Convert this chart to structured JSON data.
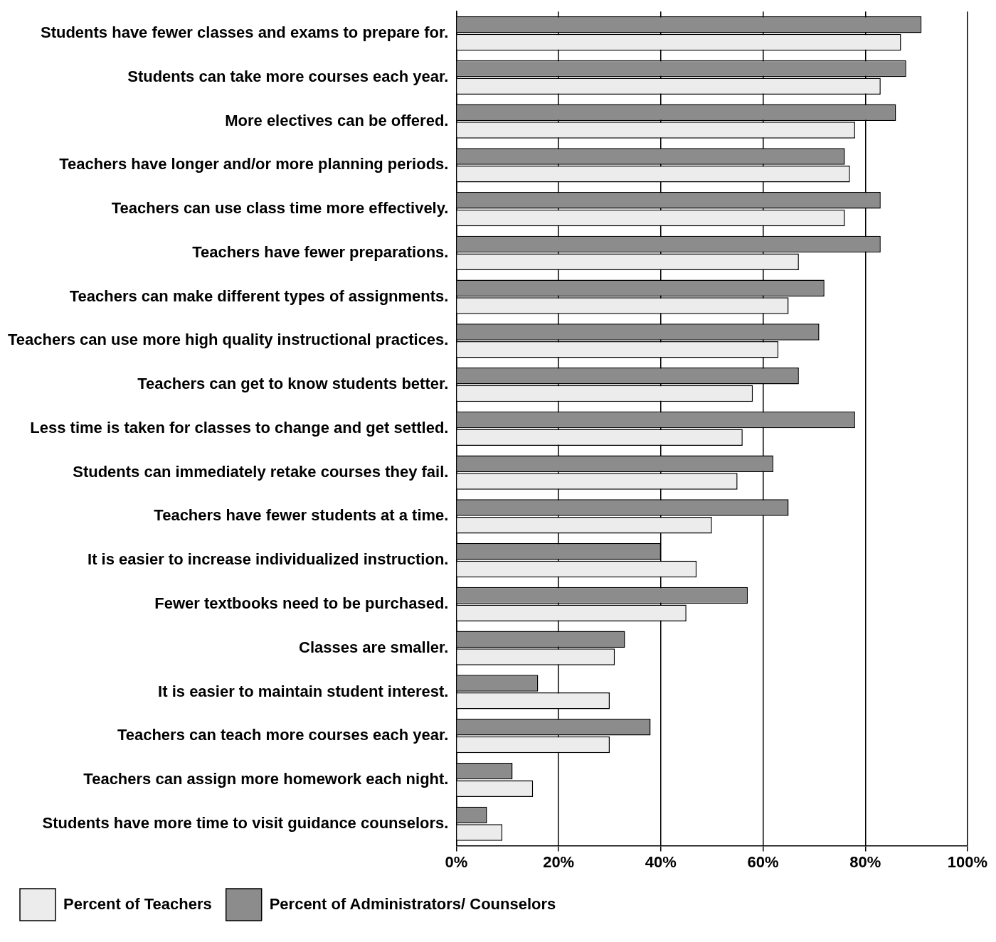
{
  "chart_data": {
    "type": "bar",
    "orientation": "horizontal",
    "categories": [
      "Students have fewer classes and exams to prepare for.",
      "Students can take more courses each year.",
      "More electives can be offered.",
      "Teachers have longer and/or more planning periods.",
      "Teachers can use class time more effectively.",
      "Teachers have fewer preparations.",
      "Teachers can make different types of assignments.",
      "Teachers can use more high quality instructional practices.",
      "Teachers can get to know students better.",
      "Less time is taken for classes to change and get settled.",
      "Students can immediately retake courses they fail.",
      "Teachers have fewer students at a time.",
      "It is easier to increase individualized instruction.",
      "Fewer textbooks need to be purchased.",
      "Classes are smaller.",
      "It is easier to maintain student interest.",
      "Teachers can teach more courses each year.",
      "Teachers can assign more homework each night.",
      "Students have more time to visit guidance counselors."
    ],
    "series": [
      {
        "name": "Percent of Administrators/ Counselors",
        "color": "#8c8c8c",
        "values": [
          91,
          88,
          86,
          76,
          83,
          83,
          72,
          71,
          67,
          78,
          62,
          65,
          40,
          57,
          33,
          16,
          38,
          11,
          6
        ]
      },
      {
        "name": "Percent of Teachers",
        "color": "#ececec",
        "values": [
          87,
          83,
          78,
          77,
          76,
          67,
          65,
          63,
          58,
          56,
          55,
          50,
          47,
          45,
          31,
          30,
          30,
          15,
          9
        ]
      }
    ],
    "xlim": [
      0,
      100
    ],
    "xticks": [
      {
        "value": 0,
        "label": "0%"
      },
      {
        "value": 20,
        "label": "20%"
      },
      {
        "value": 40,
        "label": "40%"
      },
      {
        "value": 60,
        "label": "60%"
      },
      {
        "value": 80,
        "label": "80%"
      },
      {
        "value": 100,
        "label": "100%"
      }
    ],
    "grid": "x",
    "legend": "bottom left"
  }
}
